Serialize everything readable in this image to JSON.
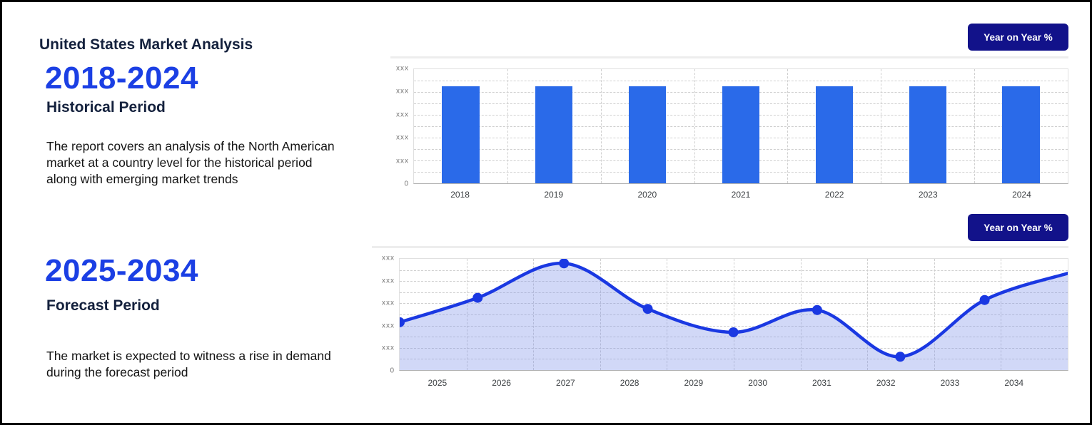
{
  "page": {
    "title": "United States Market Analysis"
  },
  "historical": {
    "range": "2018-2024",
    "label": "Historical Period",
    "description": "The report covers an analysis of the North American market at a country level for the historical period along with emerging market trends",
    "button_label": "Year on Year %"
  },
  "forecast": {
    "range": "2025-2034",
    "label": "Forecast Period",
    "description": "The market is expected to witness a rise in demand during the forecast period",
    "button_label": "Year on Year %"
  },
  "colors": {
    "heading_blue": "#1b3fe4",
    "navy_text": "#14213d",
    "button_navy": "#12128a",
    "bar_blue": "#2a6ae9",
    "line_blue": "#1a38e2",
    "area_fill": "rgba(122,142,233,0.35)",
    "gridline": "#cfcfcf",
    "divider": "#ededed"
  },
  "chart_data": [
    {
      "id": "historical_bar",
      "type": "bar",
      "title": "Historical Period (2018-2024) Year on Year %",
      "categories": [
        "2018",
        "2019",
        "2020",
        "2021",
        "2022",
        "2023",
        "2024"
      ],
      "values": [
        85,
        85,
        85,
        85,
        85,
        85,
        85
      ],
      "values_unit": "percent of y-axis max; actual y values are redacted as 'xxx' in the image, all bars equal height",
      "y_tick_labels": [
        "xxx",
        "xxx",
        "xxx",
        "xxx",
        "xxx",
        "0"
      ],
      "ylim": [
        0,
        100
      ],
      "grid": true,
      "legend": "none",
      "bar_color": "#2a6ae9"
    },
    {
      "id": "forecast_area",
      "type": "area",
      "title": "Forecast Period (2025-2034) Year on Year %",
      "categories": [
        "2025",
        "2026",
        "2027",
        "2028",
        "2029",
        "2030",
        "2031",
        "2032",
        "2033",
        "2034"
      ],
      "x_range": [
        2024.4,
        2034.85
      ],
      "points": [
        {
          "x": 2024.4,
          "value": 43,
          "marker": true
        },
        {
          "x": 2025.62,
          "value": 65,
          "marker": true
        },
        {
          "x": 2026.97,
          "value": 96,
          "marker": true
        },
        {
          "x": 2028.28,
          "value": 55,
          "marker": true
        },
        {
          "x": 2029.62,
          "value": 34,
          "marker": true
        },
        {
          "x": 2030.93,
          "value": 54,
          "marker": true
        },
        {
          "x": 2032.23,
          "value": 12,
          "marker": true
        },
        {
          "x": 2033.55,
          "value": 63,
          "marker": true
        },
        {
          "x": 2034.85,
          "value": 87,
          "marker": false
        }
      ],
      "values_unit": "percent of y-axis max; actual y values are redacted as 'xxx' in the image",
      "y_tick_labels": [
        "xxx",
        "xxx",
        "xxx",
        "xxx",
        "xxx",
        "0"
      ],
      "ylim": [
        0,
        100
      ],
      "grid": true,
      "legend": "none",
      "line_color": "#1a38e2",
      "marker_color": "#1a38e2",
      "fill_color": "rgba(122,142,233,0.35)"
    }
  ]
}
